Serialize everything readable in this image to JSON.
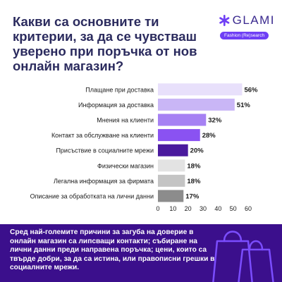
{
  "title": "Какви са основните ти критерии, за да се чувстваш уверено при поръчка от нов онлайн магазин?",
  "logo": {
    "word": "GLAMI",
    "tagline": "Fashion (Re)search"
  },
  "icons": {
    "logo": "asterisk-logo-icon",
    "footer": "shopping-bags-icon"
  },
  "colors": {
    "title": "#2b2b5e",
    "footer_bg": "#3b0f8c",
    "accent": "#6f3ff5"
  },
  "footer": {
    "text": "Сред най-големите причини за загуба на доверие в онлайн магазин са липсващи контакти; събиране на лични данни преди направена поръчка; цени, които са твърде добри, за да са истина, или правописни грешки в социалните мрежи."
  },
  "chart_data": {
    "type": "bar",
    "orientation": "horizontal",
    "categories": [
      "Плащане при доставка",
      "Информация за доставка",
      "Мнения на клиенти",
      "Контакт за обслужване на клиенти",
      "Присъствие в социалните мрежи",
      "Физически магазин",
      "Легална информация за фирмата",
      "Описание за обработката на лични данни"
    ],
    "values": [
      56,
      51,
      32,
      28,
      20,
      18,
      18,
      17
    ],
    "value_labels": [
      "56%",
      "51%",
      "32%",
      "28%",
      "20%",
      "18%",
      "18%",
      "17%"
    ],
    "bar_colors": [
      "#e8e0fb",
      "#c9b6f6",
      "#a681f3",
      "#8a52f2",
      "#4a1a9e",
      "#e3e3e3",
      "#c4c4c4",
      "#8c8c8c"
    ],
    "xlim": [
      0,
      60
    ],
    "xticks": [
      0,
      10,
      20,
      30,
      40,
      50,
      60
    ],
    "grid": false,
    "legend": "none"
  }
}
